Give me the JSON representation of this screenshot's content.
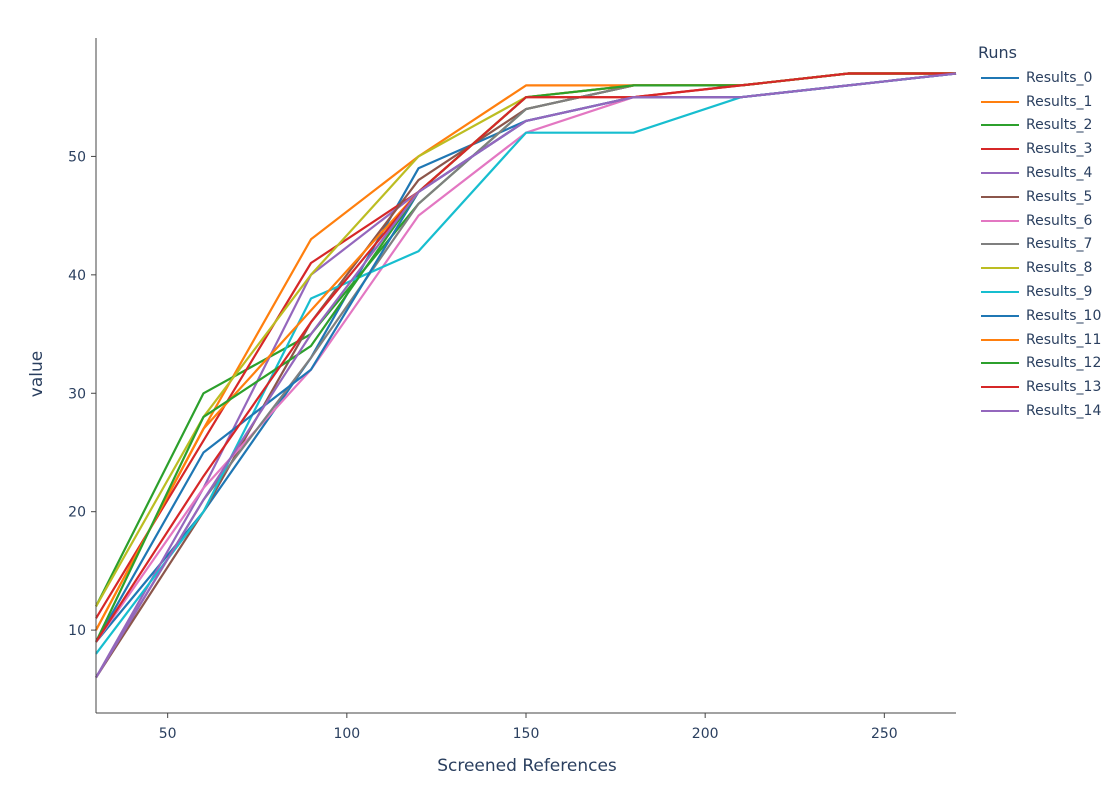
{
  "chart_data": {
    "type": "line",
    "xlabel": "Screened References",
    "ylabel": "value",
    "xlim": [
      30,
      270
    ],
    "ylim": [
      3,
      60
    ],
    "xticks": [
      50,
      100,
      150,
      200,
      250
    ],
    "yticks": [
      10,
      20,
      30,
      40,
      50
    ],
    "legend_title": "Runs",
    "legend_position": "right",
    "x": [
      30,
      60,
      90,
      120,
      150,
      180,
      210,
      240,
      270
    ],
    "series": [
      {
        "name": "Results_0",
        "color": "#1f77b4",
        "values": [
          9,
          20,
          33,
          49,
          53,
          55,
          55,
          56,
          57
        ]
      },
      {
        "name": "Results_1",
        "color": "#ff7f0e",
        "values": [
          10,
          27,
          43,
          50,
          56,
          56,
          56,
          57,
          57
        ]
      },
      {
        "name": "Results_2",
        "color": "#2ca02c",
        "values": [
          12,
          30,
          35,
          46,
          54,
          56,
          56,
          57,
          57
        ]
      },
      {
        "name": "Results_3",
        "color": "#d62728",
        "values": [
          11,
          26,
          41,
          47,
          55,
          55,
          56,
          57,
          57
        ]
      },
      {
        "name": "Results_4",
        "color": "#9467bd",
        "values": [
          6,
          22,
          40,
          47,
          53,
          55,
          55,
          56,
          57
        ]
      },
      {
        "name": "Results_5",
        "color": "#8c564b",
        "values": [
          6,
          20,
          36,
          48,
          54,
          56,
          56,
          57,
          57
        ]
      },
      {
        "name": "Results_6",
        "color": "#e377c2",
        "values": [
          9,
          22,
          32,
          45,
          52,
          55,
          55,
          56,
          57
        ]
      },
      {
        "name": "Results_7",
        "color": "#7f7f7f",
        "values": [
          6,
          21,
          33,
          46,
          54,
          56,
          56,
          57,
          57
        ]
      },
      {
        "name": "Results_8",
        "color": "#bcbd22",
        "values": [
          12,
          28,
          40,
          50,
          55,
          56,
          56,
          57,
          57
        ]
      },
      {
        "name": "Results_9",
        "color": "#17becf",
        "values": [
          8,
          20,
          38,
          42,
          52,
          52,
          55,
          56,
          57
        ]
      },
      {
        "name": "Results_10",
        "color": "#1f77b4",
        "values": [
          9,
          25,
          32,
          47,
          53,
          55,
          55,
          56,
          57
        ]
      },
      {
        "name": "Results_11",
        "color": "#ff7f0e",
        "values": [
          10,
          27,
          37,
          47,
          55,
          56,
          56,
          57,
          57
        ]
      },
      {
        "name": "Results_12",
        "color": "#2ca02c",
        "values": [
          9,
          28,
          34,
          47,
          55,
          56,
          56,
          57,
          57
        ]
      },
      {
        "name": "Results_13",
        "color": "#d62728",
        "values": [
          9,
          23,
          36,
          47,
          55,
          55,
          56,
          57,
          57
        ]
      },
      {
        "name": "Results_14",
        "color": "#9467bd",
        "values": [
          6,
          21,
          35,
          47,
          53,
          55,
          55,
          56,
          57
        ]
      }
    ]
  }
}
